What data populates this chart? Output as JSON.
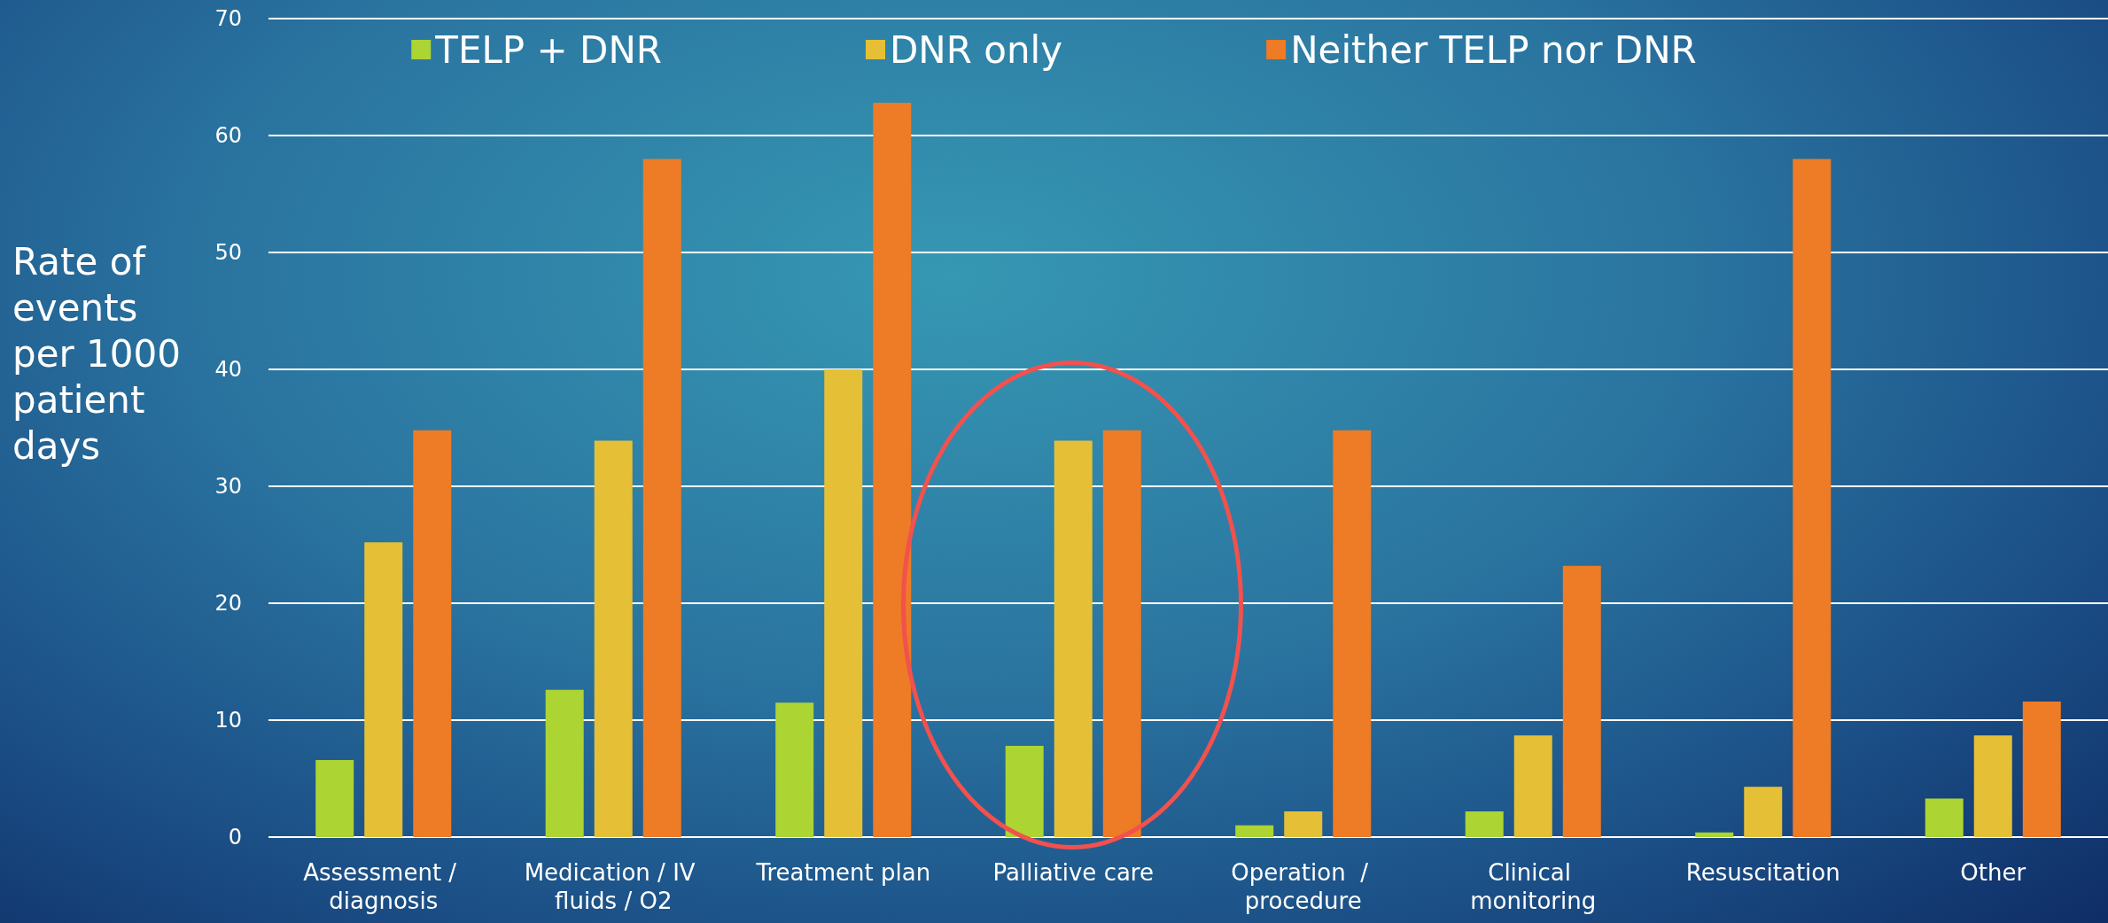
{
  "chart_data": {
    "type": "bar",
    "ylabel": "Rate of events per 1000 patient days",
    "categories": [
      "Assessment / diagnosis",
      "Medication / IV fluids / O2",
      "Treatment plan",
      "Palliative care",
      "Operation  / procedure",
      "Clinical monitoring",
      "Resuscitation",
      "Other"
    ],
    "series": [
      {
        "name": "TELP + DNR",
        "color": "#acd433",
        "values": [
          6.6,
          12.6,
          11.5,
          7.8,
          1.0,
          2.2,
          0.4,
          3.3
        ]
      },
      {
        "name": "DNR only",
        "color": "#e5c036",
        "values": [
          25.2,
          33.9,
          40,
          33.9,
          2.2,
          8.7,
          4.3,
          8.7
        ]
      },
      {
        "name": "Neither TELP nor DNR",
        "color": "#ee7b25",
        "values": [
          34.8,
          58.0,
          62.8,
          34.8,
          34.8,
          23.2,
          58.0,
          11.6
        ]
      }
    ],
    "ylim": [
      0,
      70
    ],
    "yticks": [
      0,
      10,
      20,
      30,
      40,
      50,
      60,
      70
    ],
    "grid": "y",
    "legend": "top"
  }
}
